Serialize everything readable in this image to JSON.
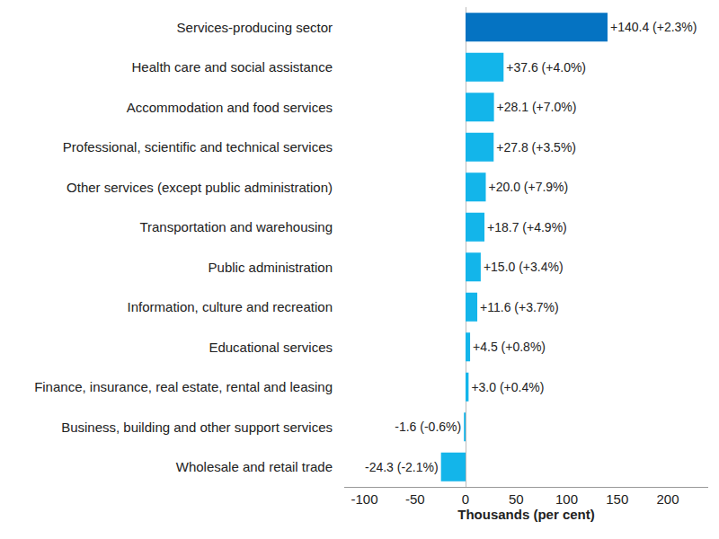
{
  "chart_data": {
    "type": "bar",
    "orientation": "horizontal",
    "x_label": "Thousands (per cent)",
    "categories": [
      "Services-producing sector",
      "Health care and social assistance",
      "Accommodation and food services",
      "Professional, scientific and technical services",
      "Other services (except public administration)",
      "Transportation and warehousing",
      "Public administration",
      "Information, culture and recreation",
      "Educational services",
      "Finance, insurance, real estate, rental and leasing",
      "Business, building and other support services",
      "Wholesale and retail trade"
    ],
    "values": [
      140.4,
      37.6,
      28.1,
      27.8,
      20.0,
      18.7,
      15.0,
      11.6,
      4.5,
      3.0,
      -1.6,
      -24.3
    ],
    "value_labels": [
      "+140.4 (+2.3%)",
      "+37.6 (+4.0%)",
      "+28.1 (+7.0%)",
      "+27.8 (+3.5%)",
      "+20.0 (+7.9%)",
      "+18.7 (+4.9%)",
      "+15.0 (+3.4%)",
      "+11.6 (+3.7%)",
      "+4.5 (+0.8%)",
      "+3.0 (+0.4%)",
      "-1.6 (-0.6%)",
      "-24.3 (-2.1%)"
    ],
    "colors": [
      "#0573c2",
      "#13b5ea",
      "#13b5ea",
      "#13b5ea",
      "#13b5ea",
      "#13b5ea",
      "#13b5ea",
      "#13b5ea",
      "#13b5ea",
      "#13b5ea",
      "#13b5ea",
      "#13b5ea"
    ],
    "xlim": [
      -120,
      240
    ],
    "xticks": [
      -100,
      -50,
      0,
      50,
      100,
      150,
      200
    ],
    "grid": false,
    "data_labels": true
  }
}
